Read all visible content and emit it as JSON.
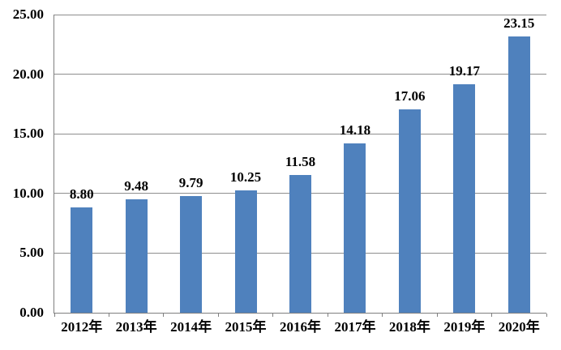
{
  "chart_data": {
    "type": "bar",
    "title": "",
    "xlabel": "",
    "ylabel": "",
    "categories": [
      "2012年",
      "2013年",
      "2014年",
      "2015年",
      "2016年",
      "2017年",
      "2018年",
      "2019年",
      "2020年"
    ],
    "values": [
      8.8,
      9.48,
      9.79,
      10.25,
      11.58,
      14.18,
      17.06,
      19.17,
      23.15
    ],
    "value_labels": [
      "8.80",
      "9.48",
      "9.79",
      "10.25",
      "11.58",
      "14.18",
      "17.06",
      "19.17",
      "23.15"
    ],
    "ylim": [
      0,
      25
    ],
    "y_tick_values": [
      0,
      5,
      10,
      15,
      20,
      25
    ],
    "y_tick_labels": [
      "0.00",
      "5.00",
      "10.00",
      "15.00",
      "20.00",
      "25.00"
    ],
    "grid": true,
    "legend": false,
    "colors": {
      "bar_fill": "#4F81BD",
      "gridline": "#8E8E8E",
      "axis": "#808080",
      "text": "#000000",
      "background": "#FFFFFF"
    }
  }
}
